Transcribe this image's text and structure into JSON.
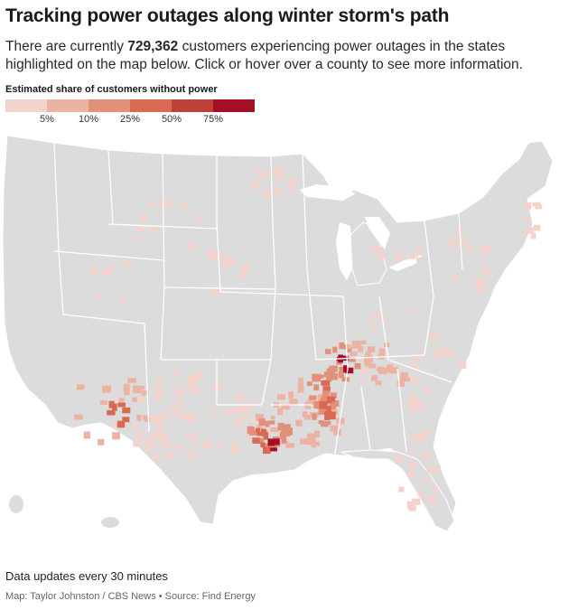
{
  "header": {
    "title": "Tracking power outages along winter storm's path",
    "subtitle_pre": "There are currently ",
    "subtitle_count": "729,362",
    "subtitle_post": " customers experiencing power outages in the states highlighted on the map below. Click or hover over a county to see more information."
  },
  "legend": {
    "title": "Estimated share of customers without power",
    "colors": [
      "#f4d3cc",
      "#ecb3a3",
      "#e3907b",
      "#d96953",
      "#c0413a",
      "#a50f26"
    ],
    "ticks": [
      "5%",
      "10%",
      "25%",
      "50%",
      "75%"
    ]
  },
  "map": {
    "land_color": "#dcdcdc",
    "border_color": "#ffffff"
  },
  "footer": {
    "note": "Data updates every 30 minutes",
    "credit": "Map: Taylor Johnston / CBS News • Source: Find Energy"
  }
}
